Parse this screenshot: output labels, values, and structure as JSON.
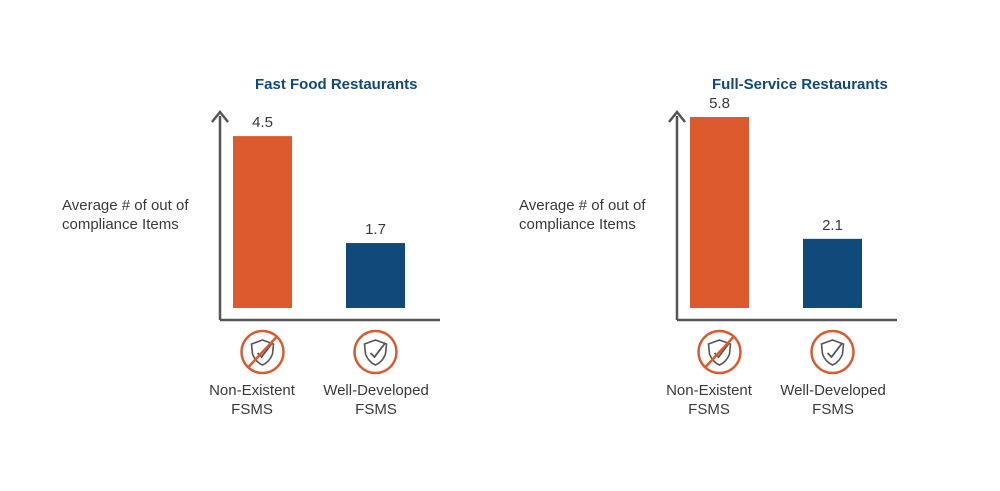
{
  "chart_data": [
    {
      "type": "bar",
      "title": "Fast Food Restaurants",
      "ylabel": "Average # of out of compliance Items",
      "xlabel": "",
      "categories": [
        "Non-Existent FSMS",
        "Well-Developed FSMS"
      ],
      "category_lines": [
        [
          "Non-Existent",
          "FSMS"
        ],
        [
          "Well-Developed",
          "FSMS"
        ]
      ],
      "values": [
        4.5,
        1.7
      ],
      "value_labels": [
        "4.5",
        "1.7"
      ],
      "colors": [
        "#dd5a2f",
        "#0f4a7a"
      ],
      "icons": [
        "shield-check-crossed-out-icon",
        "shield-check-icon"
      ],
      "ylim": [
        0,
        5
      ],
      "grid": false
    },
    {
      "type": "bar",
      "title": "Full-Service Restaurants",
      "ylabel": "Average # of out of compliance Items",
      "xlabel": "",
      "categories": [
        "Non-Existent FSMS",
        "Well-Developed FSMS"
      ],
      "category_lines": [
        [
          "Non-Existent",
          "FSMS"
        ],
        [
          "Well-Developed",
          "FSMS"
        ]
      ],
      "values": [
        5.8,
        2.1
      ],
      "value_labels": [
        "5.8",
        "2.1"
      ],
      "colors": [
        "#dd5a2f",
        "#0f4a7a"
      ],
      "icons": [
        "shield-check-crossed-out-icon",
        "shield-check-icon"
      ],
      "ylim": [
        0,
        5.8
      ],
      "grid": false
    }
  ]
}
